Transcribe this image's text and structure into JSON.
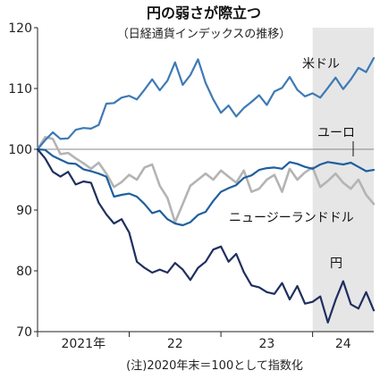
{
  "chart_data": {
    "type": "line",
    "title": "円の弱さが際立つ",
    "subtitle": "（日経通貨インデックスの推移）",
    "note": "(注)2020年末＝100として指数化",
    "x_ticks": [
      "2021年",
      "22",
      "23",
      "24"
    ],
    "y_ticks": [
      70,
      80,
      90,
      100,
      110,
      120
    ],
    "ylim": [
      70,
      120
    ],
    "xlim": [
      "2021-01",
      "2024-09"
    ],
    "reference_line": 100,
    "shaded_period": [
      "2024-01",
      "2024-09"
    ],
    "grid": false,
    "legend": "inline labels",
    "colors": {
      "usd": "#3d7ab5",
      "eur": "#1f5f9e",
      "nzd": "#b4b4b4",
      "jpy": "#1f2f5e",
      "reference": "#888888",
      "shade": "#e6e6e6"
    },
    "x": [
      "2021-01",
      "2021-02",
      "2021-03",
      "2021-04",
      "2021-05",
      "2021-06",
      "2021-07",
      "2021-08",
      "2021-09",
      "2021-10",
      "2021-11",
      "2021-12",
      "2022-01",
      "2022-02",
      "2022-03",
      "2022-04",
      "2022-05",
      "2022-06",
      "2022-07",
      "2022-08",
      "2022-09",
      "2022-10",
      "2022-11",
      "2022-12",
      "2023-01",
      "2023-02",
      "2023-03",
      "2023-04",
      "2023-05",
      "2023-06",
      "2023-07",
      "2023-08",
      "2023-09",
      "2023-10",
      "2023-11",
      "2023-12",
      "2024-01",
      "2024-02",
      "2024-03",
      "2024-04",
      "2024-05",
      "2024-06",
      "2024-07",
      "2024-08",
      "2024-09"
    ],
    "series": [
      {
        "key": "usd",
        "name": "米ドル",
        "values": [
          100,
          101.5,
          102.8,
          101.7,
          101.8,
          103.2,
          103.5,
          103.4,
          104,
          107.5,
          107.6,
          108.5,
          108.8,
          108.2,
          109.8,
          111.5,
          109.7,
          111.3,
          114.3,
          110.6,
          112.2,
          114.8,
          110.9,
          108.2,
          106,
          107.2,
          105.4,
          106.8,
          107.8,
          108.9,
          107.3,
          109.5,
          110.1,
          111.9,
          109.8,
          108.7,
          109.2,
          108.5,
          110.1,
          111.8,
          109.9,
          111.5,
          113.4,
          112.7,
          115
        ]
      },
      {
        "key": "eur",
        "name": "ユーロ",
        "values": [
          100,
          99.9,
          98.9,
          98.3,
          97.7,
          97.6,
          96.7,
          96.4,
          96,
          95.5,
          92.2,
          92.5,
          92.7,
          92.2,
          91,
          89.5,
          89.9,
          88.5,
          87.8,
          87.5,
          88,
          89.2,
          89.7,
          91.5,
          93,
          93.6,
          94.1,
          95.3,
          95.7,
          96.6,
          96.9,
          97,
          96.8,
          97.9,
          97.6,
          97.1,
          96.8,
          97.5,
          97.9,
          97.7,
          97.5,
          97.8,
          97.1,
          96.4,
          96.6
        ]
      },
      {
        "key": "nzd",
        "name": "ニュージーランドドル",
        "values": [
          100,
          102,
          101.7,
          99.2,
          99.4,
          98.5,
          97.7,
          96.8,
          97.8,
          96,
          93.8,
          94.6,
          95.8,
          95,
          97,
          97.5,
          94,
          92,
          88,
          91,
          94,
          95,
          96,
          95,
          96.5,
          95.5,
          94.5,
          96.5,
          93,
          93.5,
          95,
          95.8,
          93,
          96.8,
          95,
          96.2,
          97,
          93.8,
          94.8,
          96,
          94.5,
          93.5,
          95,
          92.5,
          91
        ]
      },
      {
        "key": "jpy",
        "name": "円",
        "values": [
          100,
          98.5,
          96.3,
          95.5,
          96.3,
          94.2,
          94.7,
          94.5,
          91.2,
          89.3,
          87.8,
          88.5,
          86.3,
          81.5,
          80.5,
          79.7,
          80.2,
          79.7,
          81.3,
          80.2,
          78.5,
          80.5,
          81.5,
          83.5,
          84,
          81.5,
          82.8,
          79.8,
          77.6,
          77.3,
          76.5,
          76.2,
          78,
          75.3,
          77.5,
          74.6,
          74.9,
          75.8,
          71.5,
          75.2,
          78.3,
          74.5,
          73.8,
          76.5,
          73.5
        ]
      }
    ],
    "labels": {
      "usd": "米ドル",
      "eur": "ユーロ",
      "nzd": "ニュージーランドドル",
      "jpy": "円"
    }
  }
}
